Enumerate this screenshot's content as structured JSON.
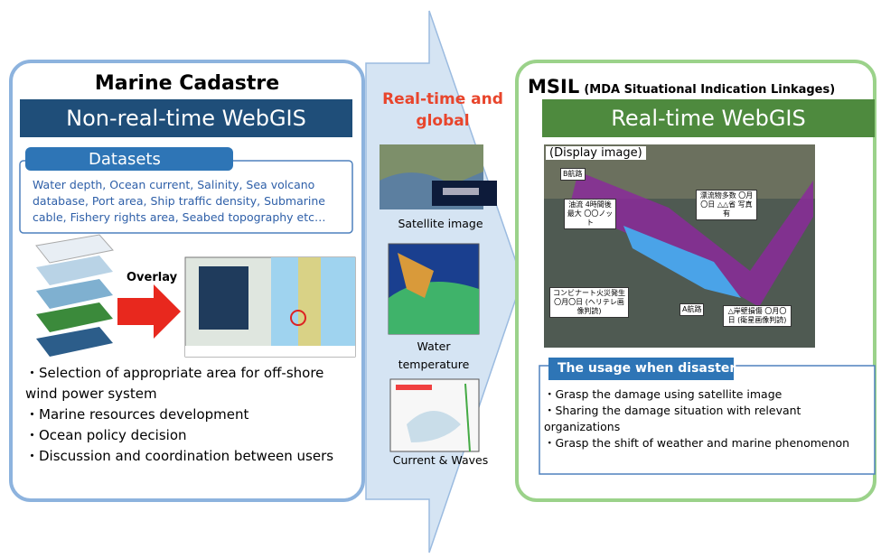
{
  "left": {
    "title": "Marine Cadastre",
    "subtitle": "Non-real-time WebGIS",
    "datasets_label": "Datasets",
    "datasets_text": "Water depth,  Ocean current, Salinity, Sea volcano database, Port area, Ship traffic density, Submarine cable, Fishery rights area, Seabed topography etc…",
    "overlay_label": "Overlay",
    "bullets": [
      "・Selection of appropriate area for off-shore wind power system",
      "・Marine resources development",
      "・Ocean policy decision",
      "・Discussion and coordination between users"
    ]
  },
  "middle": {
    "heading": "Real-time and global",
    "items": [
      "Satellite image",
      "Water temperature",
      "Current & Waves"
    ]
  },
  "right": {
    "title": "MSIL",
    "title_note": "(MDA Situational Indication Linkages)",
    "subtitle": "Real-time WebGIS",
    "display_label": "(Display image)",
    "map_labels": [
      "B航路",
      "油流 4時間後最大 〇〇ノット",
      "漂流物多数 〇月〇日 △△省 写真有",
      "コンビナート火災発生 〇月〇日 (ヘリテレ画像判読)",
      "A航路",
      "△岸壁損傷 〇月〇日 (衛星画像判読)"
    ],
    "usage_title": "The usage when disaster",
    "usage_bullets": [
      "・Grasp the damage using satellite image",
      "・Sharing the damage situation with relevant organizations",
      "・Grasp the shift of weather and marine phenomenon"
    ]
  }
}
